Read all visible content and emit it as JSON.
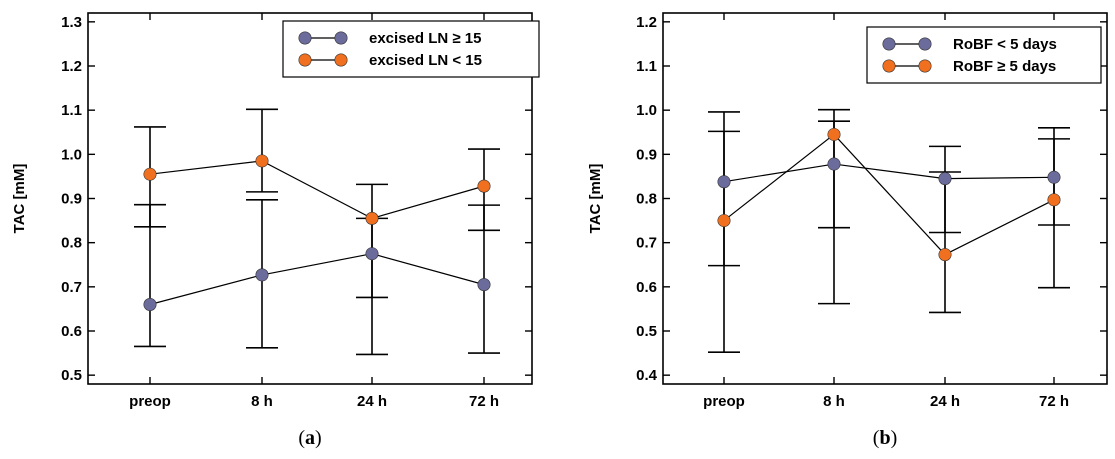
{
  "chart_data": [
    {
      "type": "line",
      "panel_label": {
        "open": "(",
        "letter": "a",
        "close": ")"
      },
      "ylabel": "TAC  [mM]",
      "xlabel": "",
      "categories": [
        "preop",
        "8 h",
        "24 h",
        "72 h"
      ],
      "ylim": [
        0.48,
        1.32
      ],
      "yticks": [
        0.5,
        0.6,
        0.7,
        0.8,
        0.9,
        1.0,
        1.1,
        1.2,
        1.3
      ],
      "ytick_labels": [
        "0.5",
        "0.6",
        "0.7",
        "0.8",
        "0.9",
        "1.0",
        "1.1",
        "1.2",
        "1.3"
      ],
      "legend_placement": "top-right",
      "grid": false,
      "series": [
        {
          "name": "excised LN ≥ 15",
          "color": "#6b6b9c",
          "values": [
            0.66,
            0.727,
            0.775,
            0.705
          ],
          "err_low": [
            0.565,
            0.562,
            0.547,
            0.55
          ],
          "err_high": [
            0.886,
            0.897,
            0.855,
            0.885
          ]
        },
        {
          "name": "excised LN < 15",
          "color": "#f07020",
          "values": [
            0.955,
            0.985,
            0.855,
            0.928
          ],
          "err_low": [
            0.836,
            0.915,
            0.676,
            0.828
          ],
          "err_high": [
            1.062,
            1.102,
            0.932,
            1.012
          ]
        }
      ]
    },
    {
      "type": "line",
      "panel_label": {
        "open": "(",
        "letter": "b",
        "close": ")"
      },
      "ylabel": "TAC  [mM]",
      "xlabel": "",
      "categories": [
        "preop",
        "8 h",
        "24 h",
        "72 h"
      ],
      "ylim": [
        0.38,
        1.22
      ],
      "yticks": [
        0.4,
        0.5,
        0.6,
        0.7,
        0.8,
        0.9,
        1.0,
        1.1,
        1.2
      ],
      "ytick_labels": [
        "0.4",
        "0.5",
        "0.6",
        "0.7",
        "0.8",
        "0.9",
        "1.0",
        "1.1",
        "1.2"
      ],
      "legend_placement": "top-right",
      "grid": false,
      "series": [
        {
          "name": "RoBF < 5 days",
          "color": "#6b6b9c",
          "values": [
            0.838,
            0.878,
            0.845,
            0.848
          ],
          "err_low": [
            0.648,
            0.734,
            0.723,
            0.74
          ],
          "err_high": [
            0.952,
            0.975,
            0.86,
            0.935
          ]
        },
        {
          "name": "RoBF ≥ 5 days",
          "color": "#f07020",
          "values": [
            0.75,
            0.945,
            0.673,
            0.797
          ],
          "err_low": [
            0.452,
            0.562,
            0.542,
            0.598
          ],
          "err_high": [
            0.996,
            1.001,
            0.918,
            0.96
          ]
        }
      ]
    }
  ]
}
